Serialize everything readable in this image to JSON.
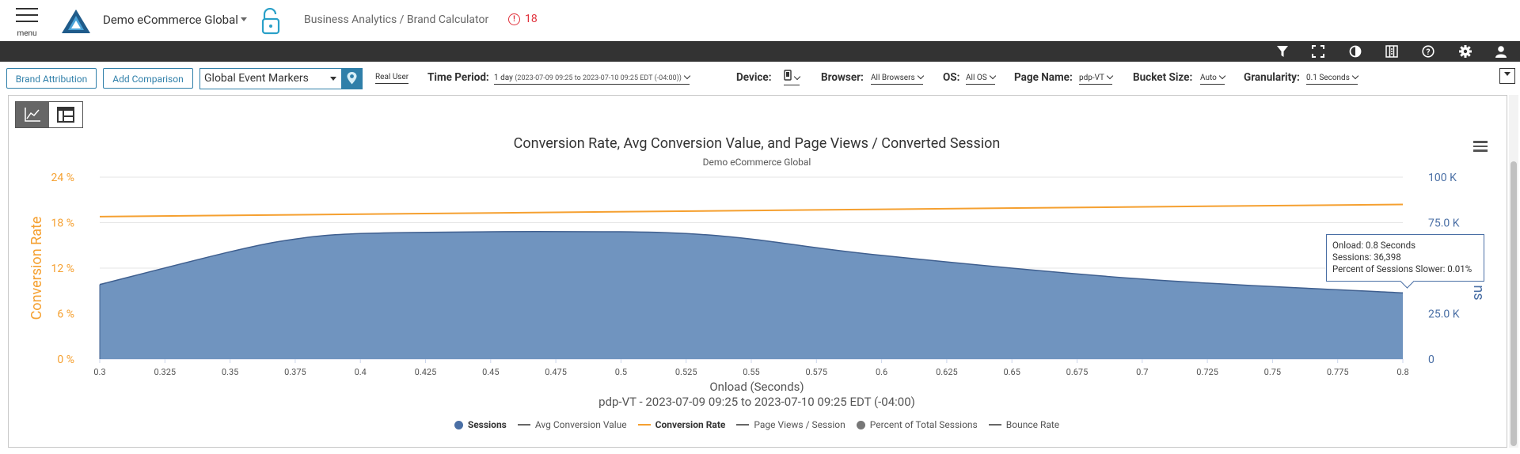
{
  "header": {
    "menu_label": "menu",
    "company": "Demo eCommerce Global",
    "breadcrumb": "Business Analytics / Brand Calculator",
    "alert_count": "18",
    "alert_symbol": "!"
  },
  "toolbar": {
    "icons": [
      "filter-icon",
      "fullscreen-icon",
      "contrast-icon",
      "columns-icon",
      "help-icon",
      "settings-icon",
      "user-icon"
    ]
  },
  "filters": {
    "brand_attribution": "Brand Attribution",
    "add_comparison": "Add Comparison",
    "event_markers": "Global Event Markers",
    "real_user": "Real User",
    "time_period_label": "Time Period:",
    "time_period_value": "1 day",
    "time_period_range": "(2023-07-09 09:25 to 2023-07-10 09:25 EDT (-04:00))",
    "device_label": "Device:",
    "browser_label": "Browser:",
    "browser_value": "All Browsers",
    "os_label": "OS:",
    "os_value": "All OS",
    "page_name_label": "Page Name:",
    "page_name_value": "pdp-VT",
    "bucket_label": "Bucket Size:",
    "bucket_value": "Auto",
    "granularity_label": "Granularity:",
    "granularity_value": "0.1 Seconds"
  },
  "chart": {
    "title": "Conversion Rate, Avg Conversion Value, and Page Views / Converted Session",
    "subtitle": "Demo eCommerce Global",
    "xlabel": "Onload (Seconds)",
    "xsub": "pdp-VT - 2023-07-09 09:25 to 2023-07-10 09:25 EDT (-04:00)",
    "ylabel_left": "Conversion Rate",
    "ylabel_right_partial": "ns",
    "tooltip": {
      "line1": "Onload: 0.8 Seconds",
      "line2": "Sessions: 36,398",
      "line3": "Percent of Sessions Slower: 0.01%"
    },
    "legend": [
      {
        "name": "Sessions",
        "kind": "dot",
        "color": "#4a6fa5",
        "bold": true
      },
      {
        "name": "Avg Conversion Value",
        "kind": "dash",
        "color": "#666666",
        "bold": false
      },
      {
        "name": "Conversion Rate",
        "kind": "dash",
        "color": "#f5a030",
        "bold": true
      },
      {
        "name": "Page Views / Session",
        "kind": "dash",
        "color": "#666666",
        "bold": false
      },
      {
        "name": "Percent of Total Sessions",
        "kind": "dot",
        "color": "#777777",
        "bold": false
      },
      {
        "name": "Bounce Rate",
        "kind": "dash",
        "color": "#666666",
        "bold": false
      }
    ]
  },
  "chart_data": {
    "type": "area",
    "title": "Conversion Rate, Avg Conversion Value, and Page Views / Converted Session",
    "subtitle": "Demo eCommerce Global",
    "xlabel": "Onload (Seconds)",
    "x_ticks": [
      "0.3",
      "0.325",
      "0.35",
      "0.375",
      "0.4",
      "0.425",
      "0.45",
      "0.475",
      "0.5",
      "0.525",
      "0.55",
      "0.575",
      "0.6",
      "0.625",
      "0.65",
      "0.675",
      "0.7",
      "0.725",
      "0.75",
      "0.775",
      "0.8"
    ],
    "xlim": [
      0.3,
      0.8
    ],
    "y_left": {
      "label": "Conversion Rate",
      "ticks": [
        "0 %",
        "6 %",
        "12 %",
        "18 %",
        "24 %"
      ],
      "lim": [
        0,
        24
      ]
    },
    "y_right": {
      "ticks": [
        "0",
        "25.0 K",
        "75.0 K",
        "100 K"
      ],
      "tick_values": [
        0,
        25000,
        75000,
        100000
      ],
      "lim": [
        0,
        100000
      ]
    },
    "series": [
      {
        "name": "Sessions",
        "axis": "right",
        "color": "#4a6fa5",
        "x": [
          0.3,
          0.35,
          0.375,
          0.4,
          0.45,
          0.5,
          0.525,
          0.55,
          0.6,
          0.7,
          0.8
        ],
        "values": [
          41000,
          59000,
          66000,
          69000,
          70000,
          70000,
          69000,
          66000,
          57000,
          44000,
          36398
        ]
      },
      {
        "name": "Conversion Rate",
        "axis": "left",
        "color": "#f5a030",
        "x": [
          0.3,
          0.8
        ],
        "values": [
          18.8,
          20.4
        ]
      }
    ],
    "grid": true
  }
}
